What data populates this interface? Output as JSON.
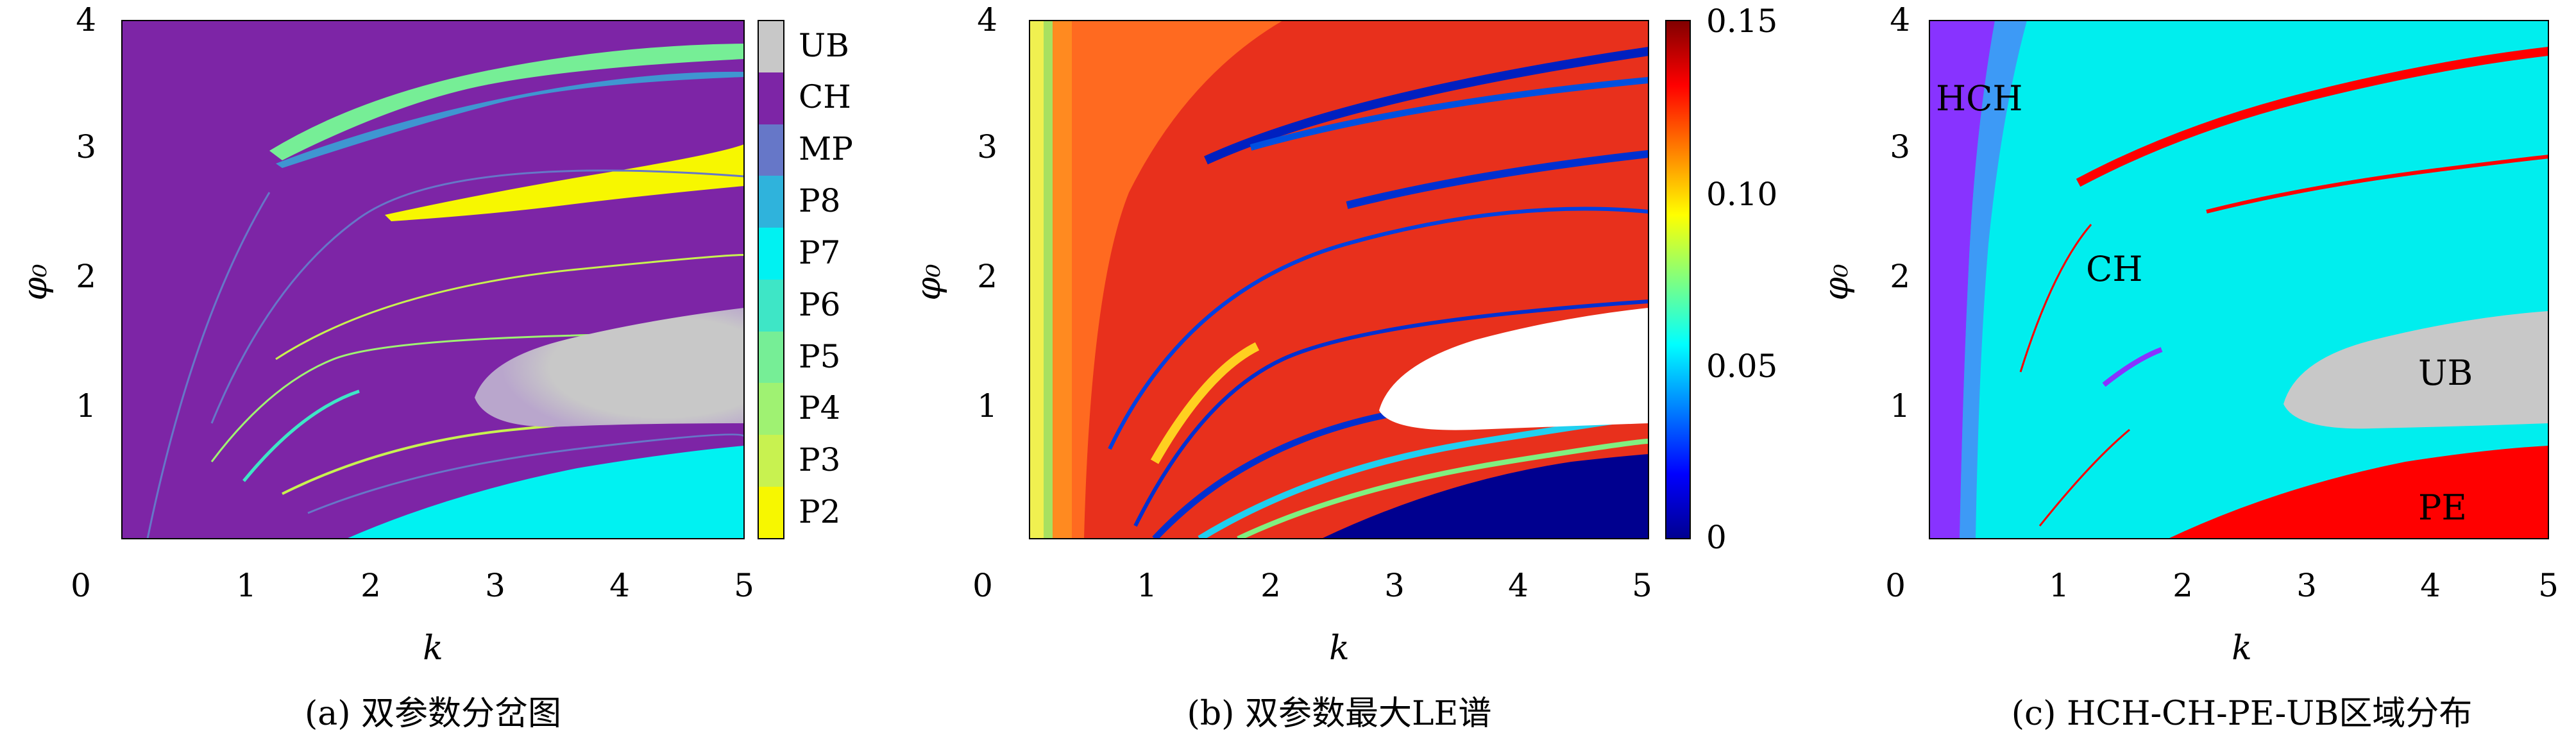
{
  "panels": [
    {
      "id": "a",
      "caption": "(a) 双参数分岔图",
      "xlabel": "k",
      "ylabel": "φ₀",
      "kind": "categorical-map",
      "colorbar": [
        "UB",
        "CH",
        "MP",
        "P8",
        "P7",
        "P6",
        "P5",
        "P4",
        "P3",
        "P2"
      ]
    },
    {
      "id": "b",
      "caption": "(b) 双参数最大LE谱",
      "xlabel": "k",
      "ylabel": "φ₀",
      "kind": "continuous-map",
      "colorbar_ticks": [
        "0.15",
        "0.10",
        "0.05",
        "0"
      ]
    },
    {
      "id": "c",
      "caption": "(c) HCH-CH-PE-UB区域分布",
      "xlabel": "k",
      "ylabel": "φ₀",
      "kind": "region-map",
      "region_labels": [
        "HCH",
        "CH",
        "UB",
        "PE"
      ]
    }
  ],
  "x_ticks": [
    "0",
    "1",
    "2",
    "3",
    "4",
    "5"
  ],
  "y_ticks": [
    "1",
    "2",
    "3",
    "4"
  ],
  "colors": {
    "UB": "#c8c8c8",
    "CH": "#7d25a6",
    "MP": "#6677c8",
    "P8": "#2fb3dc",
    "P7": "#00f2f2",
    "P6": "#3ee6c6",
    "P5": "#76ee96",
    "P4": "#9ff272",
    "P3": "#c8f250",
    "P2": "#f7f700",
    "HCH": "#8833ff",
    "PE": "#ff0000",
    "C_CH": "#00eeee",
    "LE_high": "#e8301c",
    "LE_low": "#00008f"
  },
  "chart_data": [
    {
      "type": "heatmap",
      "title": "",
      "xlabel": "k",
      "ylabel": "φ₀",
      "xlim": [
        0,
        5
      ],
      "ylim": [
        0,
        4
      ],
      "categories": [
        "UB",
        "CH",
        "MP",
        "P8",
        "P7",
        "P6",
        "P5",
        "P4",
        "P3",
        "P2"
      ],
      "regions": [
        {
          "name": "CH",
          "note": "background"
        },
        {
          "name": "P7",
          "k_range": [
            1.8,
            5
          ],
          "phi0_range": [
            0,
            0.7
          ]
        },
        {
          "name": "UB",
          "k_range": [
            2.8,
            5
          ],
          "phi0_range": [
            0.8,
            1.75
          ]
        },
        {
          "name": "P2",
          "k_range": [
            2.3,
            5
          ],
          "phi0_range": [
            2.45,
            3.0
          ]
        },
        {
          "name": "P5",
          "k_range": [
            1.2,
            5
          ],
          "phi0_range": [
            2.8,
            3.8
          ]
        }
      ]
    },
    {
      "type": "heatmap",
      "title": "",
      "xlabel": "k",
      "ylabel": "φ₀",
      "xlim": [
        0,
        5
      ],
      "ylim": [
        0,
        4
      ],
      "colorbar_range": [
        0,
        0.15
      ],
      "colorbar_ticks": [
        0,
        0.05,
        0.1,
        0.15
      ],
      "regions": [
        {
          "name": "high LE",
          "value": 0.13
        },
        {
          "name": "near-zero LE (dark blue)",
          "k_range": [
            2.5,
            5
          ],
          "phi0_range": [
            0,
            0.7
          ],
          "value": 0.0
        },
        {
          "name": "unbounded (white)",
          "k_range": [
            3,
            5
          ],
          "phi0_range": [
            0.85,
            1.75
          ]
        }
      ]
    },
    {
      "type": "heatmap",
      "title": "",
      "xlabel": "k",
      "ylabel": "φ₀",
      "xlim": [
        0,
        5
      ],
      "ylim": [
        0,
        4
      ],
      "categories": [
        "HCH",
        "CH",
        "PE",
        "UB"
      ],
      "regions": [
        {
          "name": "HCH",
          "k_range": [
            0.15,
            0.7
          ],
          "phi0_range": [
            0,
            4
          ]
        },
        {
          "name": "CH",
          "note": "background"
        },
        {
          "name": "UB",
          "k_range": [
            2.8,
            5
          ],
          "phi0_range": [
            0.85,
            1.75
          ]
        },
        {
          "name": "PE",
          "k_range": [
            1.9,
            5
          ],
          "phi0_range": [
            0,
            0.7
          ]
        }
      ]
    }
  ]
}
